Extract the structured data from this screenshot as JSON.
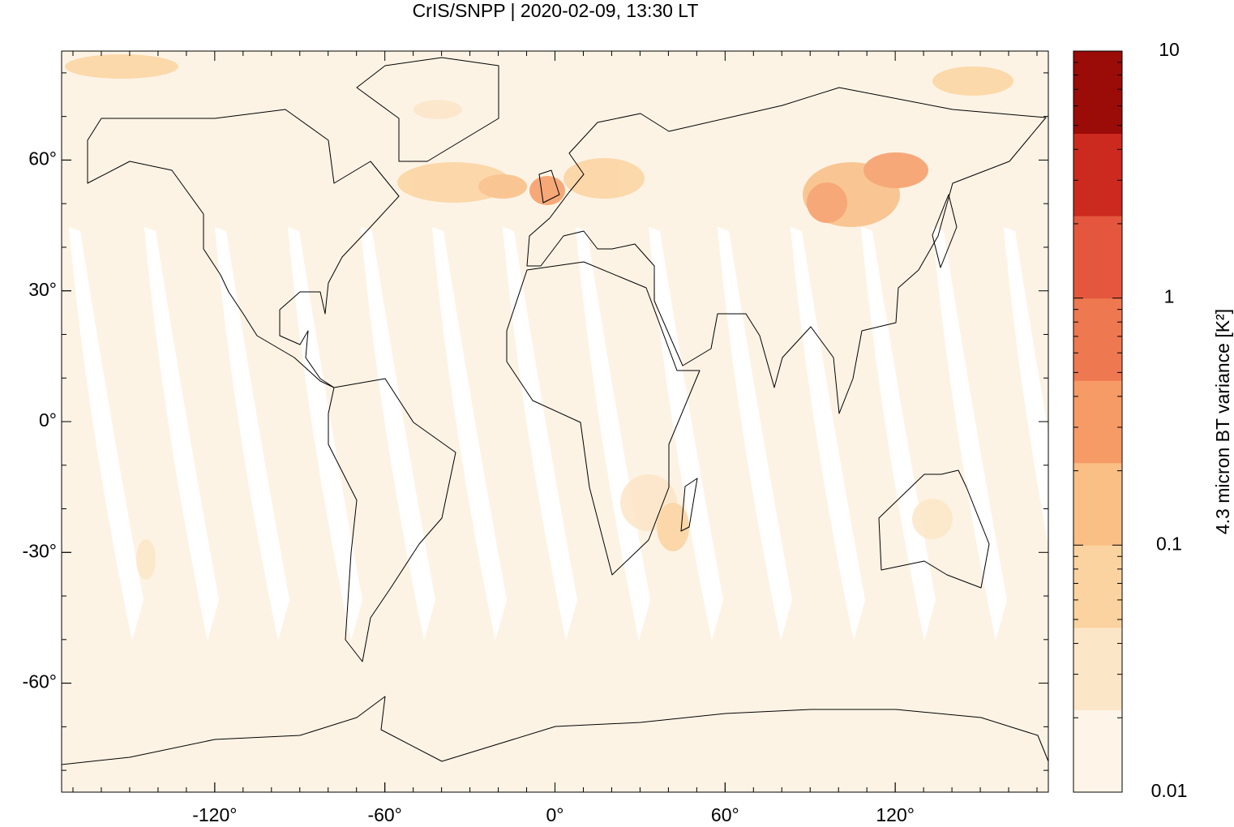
{
  "chart_data": {
    "type": "map",
    "title": "CrIS/SNPP | 2020-02-09, 13:30 LT",
    "xlim": [
      -174,
      174
    ],
    "ylim": [
      -85,
      85
    ],
    "xticks": [
      {
        "value": -120,
        "label": "-120°"
      },
      {
        "value": -60,
        "label": "-60°"
      },
      {
        "value": 0,
        "label": "0°"
      },
      {
        "value": 60,
        "label": "60°"
      },
      {
        "value": 120,
        "label": "120°"
      }
    ],
    "yticks": [
      {
        "value": 60,
        "label": "60°"
      },
      {
        "value": 30,
        "label": "30°"
      },
      {
        "value": 0,
        "label": "0°"
      },
      {
        "value": -30,
        "label": "-30°"
      },
      {
        "value": -60,
        "label": "-60°"
      }
    ],
    "background_color": "#fdf3e5",
    "colorbar": {
      "label": "4.3 micron BT variance [K²]",
      "scale": "log",
      "lim": [
        0.01,
        10
      ],
      "ticks": [
        0.01,
        0.1,
        1,
        10
      ],
      "colors": [
        "#fef5e8",
        "#fce6c8",
        "#fbd3a0",
        "#f9bf85",
        "#f69b66",
        "#ee7850",
        "#e4573e",
        "#cc2a1e",
        "#9b0b07"
      ]
    }
  }
}
